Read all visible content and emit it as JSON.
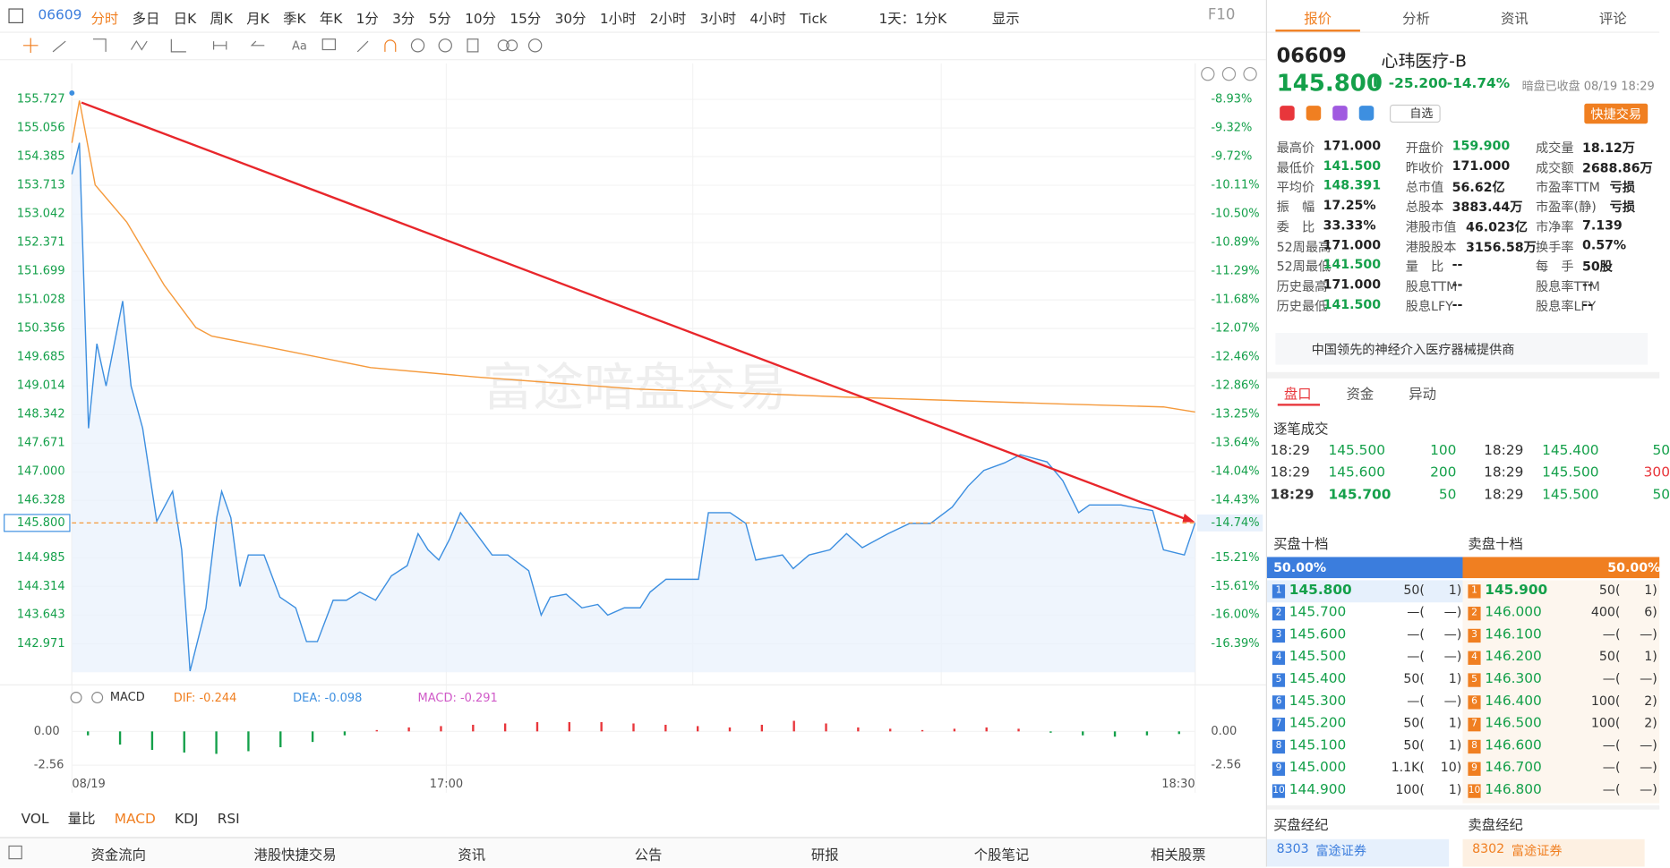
{
  "toolbar": {
    "code": "06609",
    "periods": [
      "分时",
      "多日",
      "日K",
      "周K",
      "月K",
      "季K",
      "年K",
      "1分",
      "3分",
      "5分",
      "10分",
      "15分",
      "30分",
      "1小时",
      "2小时",
      "3小时",
      "4小时",
      "Tick"
    ],
    "active": 0,
    "range": "1天：1分K",
    "display": "显示",
    "f10": "F10"
  },
  "chart_data": {
    "type": "line",
    "watermark": "富途暗盘交易",
    "xlim": [
      0,
      135
    ],
    "xticks": [
      {
        "value": 0,
        "label": "08/19"
      },
      {
        "value": 45,
        "label": "17:00"
      },
      {
        "value": 135,
        "label": "18:30"
      }
    ],
    "ylim": [
      142.302,
      156.074
    ],
    "yticks": [
      155.727,
      155.056,
      154.385,
      153.713,
      153.042,
      152.371,
      151.699,
      151.028,
      150.356,
      149.685,
      149.014,
      148.342,
      147.671,
      {
        "value": 147,
        "label": "147.000"
      },
      146.328,
      144.985,
      144.314,
      143.643,
      142.971
    ],
    "y2_labels": [
      "-8.93%",
      "-9.32%",
      "-9.72%",
      "-10.11%",
      "-10.50%",
      "-10.89%",
      "-11.29%",
      "-11.68%",
      "-12.07%",
      "-12.46%",
      "-12.86%",
      "-13.25%",
      "-13.64%",
      "-14.04%",
      "-14.43%",
      "-15.21%",
      "-15.61%",
      "-16.00%",
      "-16.39%"
    ],
    "grid": true,
    "current": {
      "value": 145.8,
      "label": "145.800",
      "pct": "-14.74%"
    },
    "series": [
      {
        "color": "#3d8fe0",
        "x": [
          0,
          0.9,
          2,
          3,
          4.1,
          6.1,
          7.1,
          8.5,
          10.2,
          12.1,
          13.2,
          14.2,
          16.1,
          17.4,
          18,
          19.1,
          20.2,
          21.2,
          23.1,
          25,
          26.9,
          28.2,
          29.5,
          31.4,
          33,
          34.6,
          36.5,
          38.4,
          40.3,
          41.6,
          42.8,
          44.1,
          45.4,
          46.7,
          48.6,
          50.5,
          52.4,
          54.9,
          56.4,
          57.5,
          59.4,
          61.3,
          63.2,
          64.4,
          66.4,
          68.3,
          69.5,
          71.4,
          75.3,
          76.5,
          79.1,
          81,
          82.2,
          85.4,
          86.7,
          88.6,
          91.1,
          93.1,
          95,
          98.1,
          100.7,
          103.2,
          105.8,
          107.7,
          109.6,
          112.1,
          114,
          117.2,
          119.1,
          121,
          122.3,
          126.1,
          129.9,
          131.2,
          133.7,
          135
        ],
        "values": [
          153.97,
          154.71,
          148.02,
          150.0,
          149.01,
          151.0,
          149.01,
          148.02,
          145.84,
          146.54,
          145.17,
          142.33,
          143.81,
          145.92,
          146.54,
          145.92,
          144.31,
          145.05,
          145.05,
          144.06,
          143.81,
          143.02,
          143.02,
          143.99,
          143.99,
          144.18,
          143.99,
          144.56,
          144.8,
          145.55,
          145.17,
          144.93,
          145.42,
          146.04,
          145.55,
          145.05,
          145.05,
          144.68,
          143.64,
          144.06,
          144.13,
          143.81,
          143.89,
          143.64,
          143.81,
          143.81,
          144.18,
          144.48,
          144.48,
          146.04,
          146.04,
          145.79,
          144.93,
          145.05,
          144.73,
          145.05,
          145.17,
          145.55,
          145.22,
          145.55,
          145.79,
          145.79,
          146.17,
          146.66,
          147.03,
          147.21,
          147.4,
          147.23,
          146.79,
          146.04,
          146.22,
          146.22,
          146.09,
          145.17,
          145.05,
          145.8
        ]
      },
      {
        "color": "#f59a3c",
        "x": [
          0,
          0.9,
          2.8,
          6.6,
          11.1,
          14.9,
          16.8,
          24.4,
          35.9,
          48.6,
          67.7,
          93.1,
          118.5,
          131.2,
          135
        ],
        "values": [
          154.71,
          155.7,
          153.72,
          152.85,
          151.37,
          150.38,
          150.18,
          149.89,
          149.44,
          149.22,
          148.94,
          148.75,
          148.59,
          148.52,
          148.4
        ]
      }
    ]
  },
  "macd": {
    "name": "MACD",
    "dif": "DIF: -0.244",
    "dea": "DEA: -0.098",
    "macd": "MACD: -0.291",
    "ylim": [
      -3.52,
      1.6
    ],
    "yticks": [
      {
        "value": 0,
        "label": "0.00"
      },
      -2.56
    ],
    "histogram": [
      -0.3,
      -1.0,
      -1.4,
      -1.6,
      -1.7,
      -1.5,
      -1.2,
      -0.8,
      -0.3,
      0.1,
      0.3,
      0.4,
      0.5,
      0.6,
      0.7,
      0.7,
      0.7,
      0.6,
      0.5,
      0.4,
      0.3,
      0.5,
      0.8,
      0.6,
      0.3,
      0.2,
      0.1,
      0.2,
      0.3,
      0.2,
      -0.1,
      -0.3,
      -0.4,
      -0.3,
      -0.2
    ]
  },
  "indicator_tabs": {
    "items": [
      "VOL",
      "量比",
      "MACD",
      "KDJ",
      "RSI"
    ],
    "active": 2
  },
  "bottom_tabs": [
    "资金流向",
    "港股快捷交易",
    "资讯",
    "公告",
    "研报",
    "个股笔记",
    "相关股票"
  ],
  "panel": {
    "tabs": [
      "报价",
      "分析",
      "资讯",
      "评论"
    ],
    "active": 0,
    "code": "06609",
    "name": "心玮医疗-B",
    "price": "145.800",
    "change": "-25.200",
    "pct": "-14.74%",
    "status": "暗盘已收盘 08/19 18:29",
    "watch": "自选",
    "trade": "快捷交易",
    "stats": [
      [
        {
          "label": "最高价",
          "value": "171.000"
        },
        {
          "label": "最低价",
          "value": "141.500",
          "color": "#14a04a"
        },
        {
          "label": "平均价",
          "value": "148.391",
          "color": "#14a04a"
        },
        {
          "label": "振　幅",
          "value": "17.25%"
        },
        {
          "label": "委　比",
          "value": "33.33%"
        },
        {
          "label": "52周最高",
          "value": "171.000"
        },
        {
          "label": "52周最低",
          "value": "141.500",
          "color": "#14a04a"
        },
        {
          "label": "历史最高",
          "value": "171.000"
        },
        {
          "label": "历史最低",
          "value": "141.500",
          "color": "#14a04a"
        }
      ],
      [
        {
          "label": "开盘价",
          "value": "159.900",
          "color": "#14a04a"
        },
        {
          "label": "昨收价",
          "value": "171.000"
        },
        {
          "label": "总市值",
          "value": "56.62亿"
        },
        {
          "label": "总股本",
          "value": "3883.44万"
        },
        {
          "label": "港股市值",
          "value": "46.023亿"
        },
        {
          "label": "港股股本",
          "value": "3156.58万"
        },
        {
          "label": "量　比",
          "value": "--"
        },
        {
          "label": "股息TTM",
          "value": "--"
        },
        {
          "label": "股息LFY",
          "value": "--"
        }
      ],
      [
        {
          "label": "成交量",
          "value": "18.12万"
        },
        {
          "label": "成交额",
          "value": "2688.86万"
        },
        {
          "label": "市盈率TTM",
          "value": "亏损"
        },
        {
          "label": "市盈率(静)",
          "value": "亏损"
        },
        {
          "label": "市净率",
          "value": "7.139"
        },
        {
          "label": "换手率",
          "value": "0.57%"
        },
        {
          "label": "每　手",
          "value": "50股"
        },
        {
          "label": "股息率TTM",
          "value": "--"
        },
        {
          "label": "股息率LFY",
          "value": "--"
        }
      ]
    ],
    "description": "中国领先的神经介入医疗器械提供商",
    "subtabs": [
      "盘口",
      "资金",
      "异动"
    ],
    "trades_title": "逐笔成交",
    "trades": [
      [
        {
          "time": "18:29",
          "price": "145.500",
          "vol": "100",
          "color": "#14a04a"
        },
        {
          "time": "18:29",
          "price": "145.400",
          "vol": "50",
          "color": "#14a04a"
        }
      ],
      [
        {
          "time": "18:29",
          "price": "145.600",
          "vol": "200",
          "color": "#14a04a"
        },
        {
          "time": "18:29",
          "price": "145.500",
          "vol": "300",
          "color": "#e8363b"
        }
      ],
      [
        {
          "time": "18:29",
          "price": "145.700",
          "vol": "50",
          "color": "#14a04a"
        },
        {
          "time": "18:29",
          "price": "145.500",
          "vol": "50",
          "color": "#14a04a"
        }
      ]
    ],
    "bid_title": "买盘十档",
    "ask_title": "卖盘十档",
    "bid_ratio": "50.00%",
    "ask_ratio": "50.00%",
    "bids": [
      [
        "1",
        "145.800",
        "50(",
        "1)"
      ],
      [
        "2",
        "145.700",
        "—(",
        "—)"
      ],
      [
        "3",
        "145.600",
        "—(",
        "—)"
      ],
      [
        "4",
        "145.500",
        "—(",
        "—)"
      ],
      [
        "5",
        "145.400",
        "50(",
        "1)"
      ],
      [
        "6",
        "145.300",
        "—(",
        "—)"
      ],
      [
        "7",
        "145.200",
        "50(",
        "1)"
      ],
      [
        "8",
        "145.100",
        "50(",
        "1)"
      ],
      [
        "9",
        "145.000",
        "1.1K(",
        "10)"
      ],
      [
        "10",
        "144.900",
        "100(",
        "1)"
      ]
    ],
    "asks": [
      [
        "1",
        "145.900",
        "50(",
        "1)"
      ],
      [
        "2",
        "146.000",
        "400(",
        "6)"
      ],
      [
        "3",
        "146.100",
        "—(",
        "—)"
      ],
      [
        "4",
        "146.200",
        "50(",
        "1)"
      ],
      [
        "5",
        "146.300",
        "—(",
        "—)"
      ],
      [
        "6",
        "146.400",
        "100(",
        "2)"
      ],
      [
        "7",
        "146.500",
        "100(",
        "2)"
      ],
      [
        "8",
        "146.600",
        "—(",
        "—)"
      ],
      [
        "9",
        "146.700",
        "—(",
        "—)"
      ],
      [
        "10",
        "146.800",
        "—(",
        "—)"
      ]
    ],
    "bid_broker_title": "买盘经纪",
    "ask_broker_title": "卖盘经纪",
    "bid_broker": {
      "id": "8303",
      "name": "富途证券"
    },
    "ask_broker": {
      "id": "8302",
      "name": "富途证券"
    }
  }
}
